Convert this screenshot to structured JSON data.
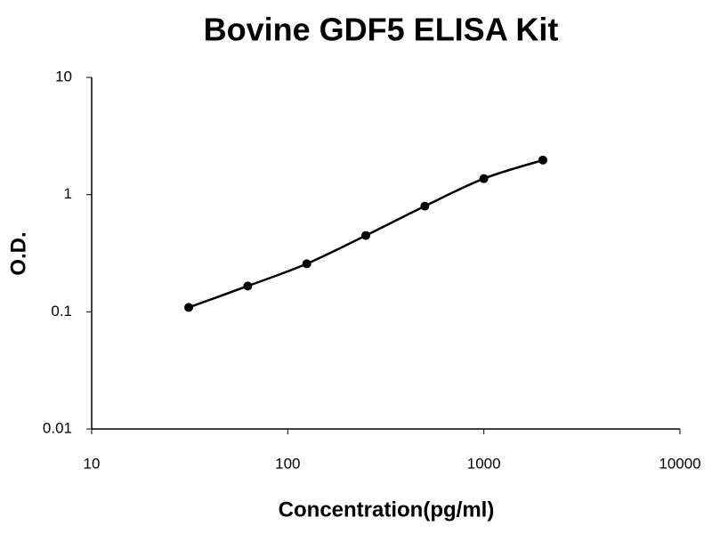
{
  "chart_data": {
    "type": "line",
    "title": "Bovine GDF5 ELISA Kit",
    "x_label": "Concentration(pg/ml)",
    "y_label": "O.D.",
    "x": [
      31.25,
      62.5,
      125,
      250,
      500,
      1000,
      2000
    ],
    "series": [
      {
        "color": "#000000",
        "values": [
          0.109,
          0.166,
          0.257,
          0.448,
          0.797,
          1.37,
          1.97
        ]
      }
    ],
    "xlim": [
      10,
      10000
    ],
    "xticks": [
      10,
      100,
      1000,
      10000
    ],
    "ylim": [
      0.01,
      10
    ],
    "yticks": [
      0.01,
      0.1,
      1,
      10
    ],
    "x_log": true,
    "y_log": true,
    "grid": false
  }
}
